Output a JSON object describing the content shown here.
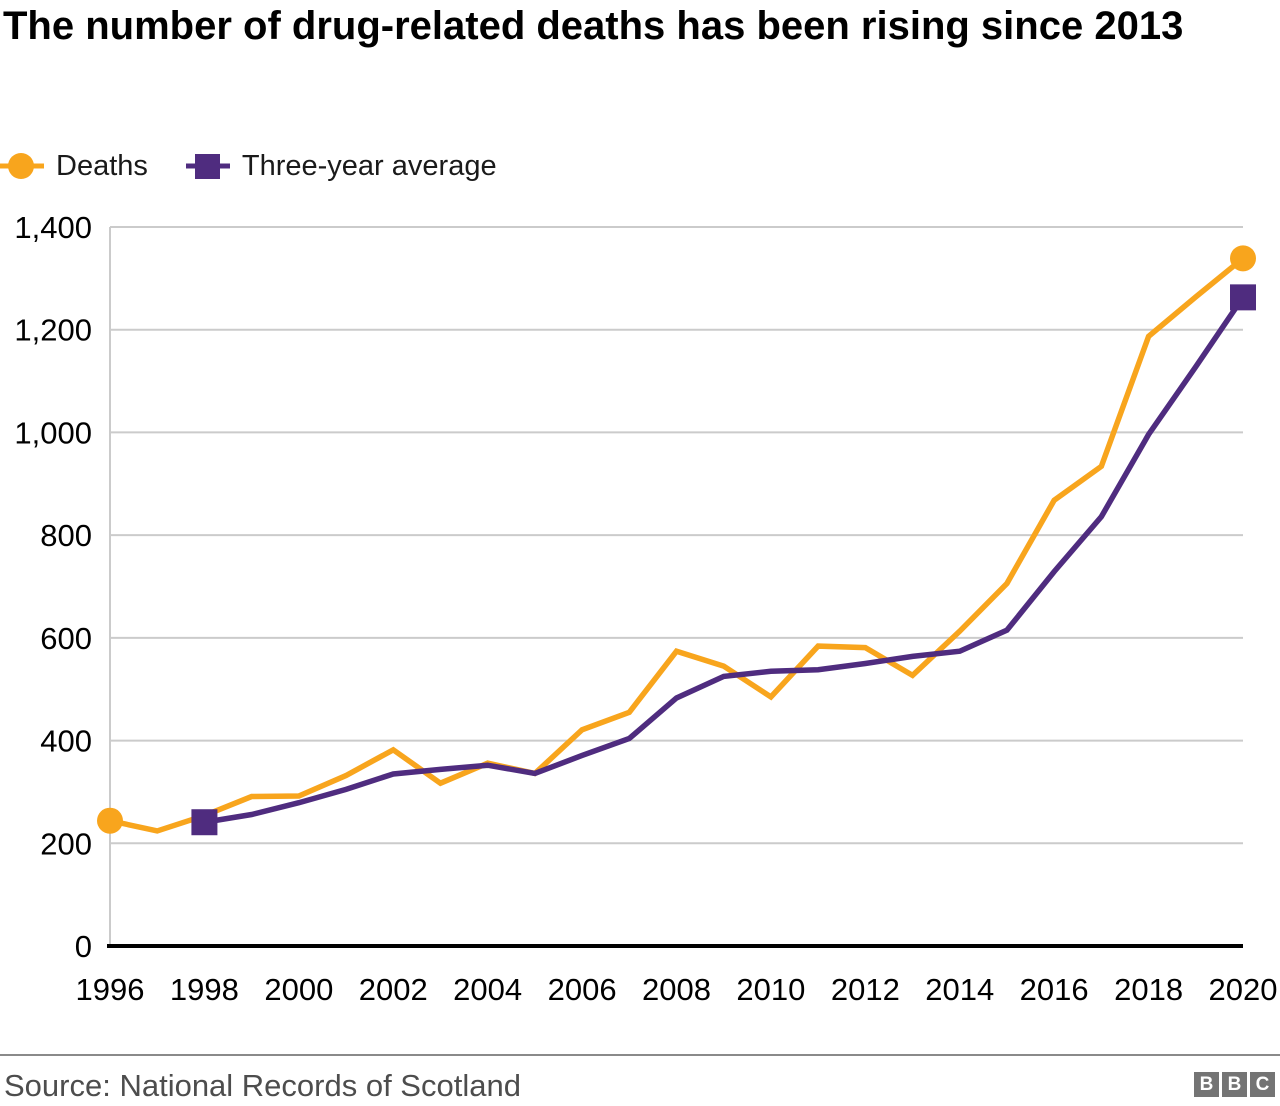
{
  "header": {
    "title": "The number of drug-related deaths has been rising since 2013"
  },
  "legend": {
    "items": [
      {
        "label": "Deaths",
        "color": "#F8A51D",
        "marker": "circle"
      },
      {
        "label": "Three-year average",
        "color": "#4F2C7F",
        "marker": "square"
      }
    ]
  },
  "chart_data": {
    "type": "line",
    "title": "The number of drug-related deaths has been rising since 2013",
    "xlabel": "",
    "ylabel": "",
    "x_range": [
      1996,
      2020
    ],
    "ylim": [
      0,
      1400
    ],
    "yticks": [
      0,
      200,
      400,
      600,
      800,
      1000,
      1200,
      1400
    ],
    "ytick_labels": [
      "0",
      "200",
      "400",
      "600",
      "800",
      "1,000",
      "1,200",
      "1,400"
    ],
    "xticks": [
      1996,
      1998,
      2000,
      2002,
      2004,
      2006,
      2008,
      2010,
      2012,
      2014,
      2016,
      2018,
      2020
    ],
    "grid": "horizontal-only",
    "legend_position": "top-left",
    "colors": {
      "gridline": "#CBCBCB",
      "axis_line": "#CBCBCB",
      "baseline": "#000000"
    },
    "series": [
      {
        "name": "Deaths",
        "color": "#F8A51D",
        "marker": "circle",
        "marker_points": "first-and-last",
        "x": [
          1996,
          1997,
          1998,
          1999,
          2000,
          2001,
          2002,
          2003,
          2004,
          2005,
          2006,
          2007,
          2008,
          2009,
          2010,
          2011,
          2012,
          2013,
          2014,
          2015,
          2016,
          2017,
          2018,
          2019,
          2020
        ],
        "values": [
          244,
          224,
          254,
          291,
          292,
          332,
          382,
          317,
          356,
          336,
          421,
          455,
          574,
          545,
          485,
          584,
          581,
          527,
          613,
          706,
          868,
          934,
          1187,
          1264,
          1339
        ]
      },
      {
        "name": "Three-year average",
        "color": "#4F2C7F",
        "marker": "square",
        "marker_points": "first-and-last",
        "x": [
          1998,
          1999,
          2000,
          2001,
          2002,
          2003,
          2004,
          2005,
          2006,
          2007,
          2008,
          2009,
          2010,
          2011,
          2012,
          2013,
          2014,
          2015,
          2016,
          2017,
          2018,
          2019,
          2020
        ],
        "values": [
          241,
          256,
          279,
          305,
          335,
          344,
          352,
          336,
          371,
          404,
          483,
          525,
          535,
          538,
          550,
          564,
          574,
          615,
          729,
          836,
          996,
          1128,
          1263
        ]
      }
    ]
  },
  "footer": {
    "source": "Source: National Records of Scotland",
    "logo_letters": [
      "B",
      "B",
      "C"
    ]
  }
}
